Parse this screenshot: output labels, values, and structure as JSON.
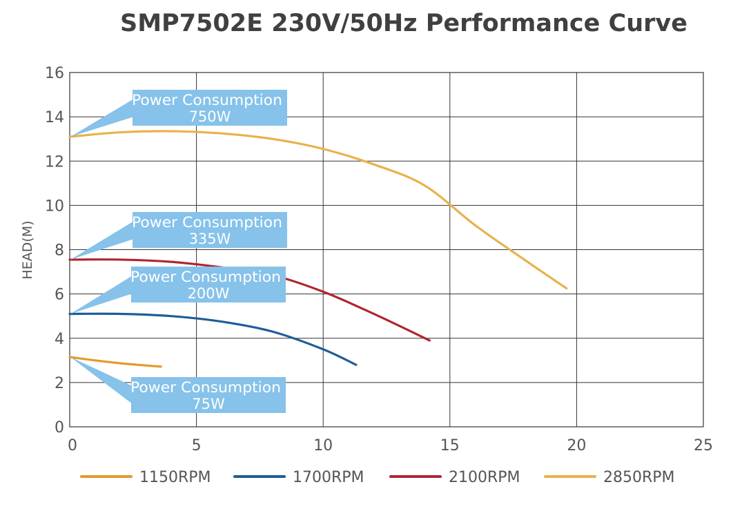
{
  "chart_data": {
    "type": "line",
    "title": "SMP7502E  230V/50Hz Performance Curve",
    "xlabel": "",
    "ylabel": "HEAD(M)",
    "xlim": [
      0,
      25
    ],
    "ylim": [
      0,
      16
    ],
    "xticks": [
      0,
      5,
      10,
      15,
      20,
      25
    ],
    "yticks": [
      0,
      2,
      4,
      6,
      8,
      10,
      12,
      14,
      16
    ],
    "grid": true,
    "legend": "bottom",
    "series": [
      {
        "name": "1150RPM",
        "color": "#e39a2c",
        "x": [
          0,
          1,
          2,
          3,
          3.6
        ],
        "y": [
          3.15,
          3.0,
          2.87,
          2.77,
          2.72
        ]
      },
      {
        "name": "1700RPM",
        "color": "#1f5c99",
        "x": [
          0,
          2,
          4,
          6,
          8,
          10,
          11.3
        ],
        "y": [
          5.1,
          5.1,
          5.0,
          4.75,
          4.3,
          3.5,
          2.8
        ]
      },
      {
        "name": "2100RPM",
        "color": "#b02530",
        "x": [
          0,
          2,
          4,
          6,
          8,
          10,
          12,
          14.2
        ],
        "y": [
          7.55,
          7.55,
          7.45,
          7.2,
          6.85,
          6.1,
          5.1,
          3.9
        ]
      },
      {
        "name": "2850RPM",
        "color": "#e8b24a",
        "x": [
          0,
          2,
          4,
          6,
          8,
          10,
          12,
          14,
          16,
          18,
          19.6
        ],
        "y": [
          13.1,
          13.3,
          13.35,
          13.25,
          13.0,
          12.55,
          11.85,
          10.9,
          9.1,
          7.5,
          6.25
        ]
      }
    ],
    "annotations": [
      {
        "line1": "Power Consumption",
        "line2": "750W",
        "y": 13.1
      },
      {
        "line1": "Power Consumption",
        "line2": "335W",
        "y": 7.55
      },
      {
        "line1": "Power Consumption",
        "line2": "200W",
        "y": 5.1
      },
      {
        "line1": "Power Consumption",
        "line2": "75W",
        "y": 3.15
      }
    ],
    "callout_color": "#86c2ea"
  }
}
